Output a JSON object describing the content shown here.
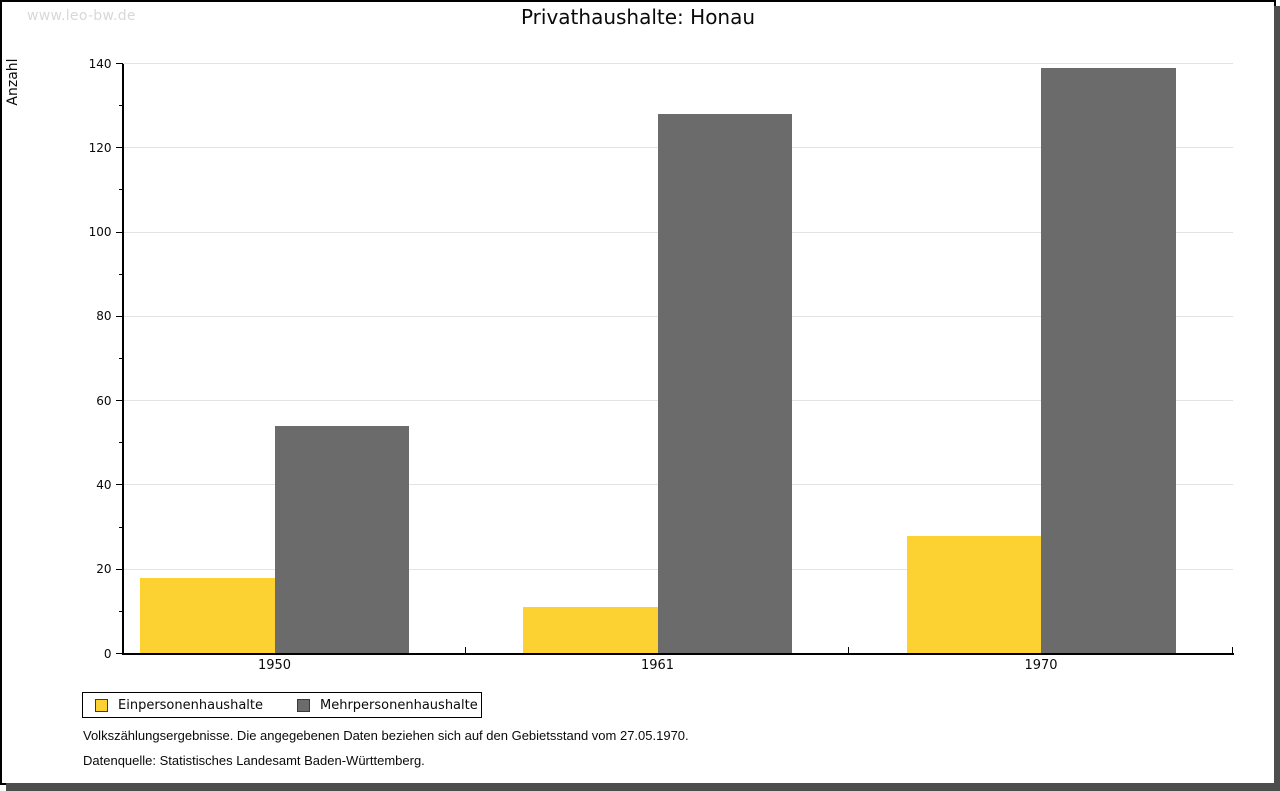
{
  "watermark": "www.leo-bw.de",
  "header": {
    "title": "Privathaushalte: Honau"
  },
  "chart_data": {
    "type": "bar",
    "title": "Privathaushalte: Honau",
    "ylabel": "Anzahl",
    "xlabel": "",
    "categories": [
      "1950",
      "1961",
      "1970"
    ],
    "series": [
      {
        "name": "Einpersonenhaushalte",
        "color": "#FCD232",
        "values": [
          18,
          11,
          28
        ]
      },
      {
        "name": "Mehrpersonenhaushalte",
        "color": "#6B6B6B",
        "values": [
          54,
          128,
          139
        ]
      }
    ],
    "ylim": [
      0,
      140
    ],
    "ytick_step": 20,
    "yminor_step": 10,
    "grid": true,
    "legend_position": "bottom-left"
  },
  "footnotes": {
    "line1": "Volkszählungsergebnisse. Die angegebenen Daten beziehen sich auf den Gebietsstand vom 27.05.1970.",
    "line2": "Datenquelle: Statistisches Landesamt Baden-Württemberg."
  },
  "colors": {
    "grid": "#E3E3E3",
    "axis": "#000000",
    "watermark": "#D8D8D8",
    "shadow": "#4D4D4D"
  }
}
